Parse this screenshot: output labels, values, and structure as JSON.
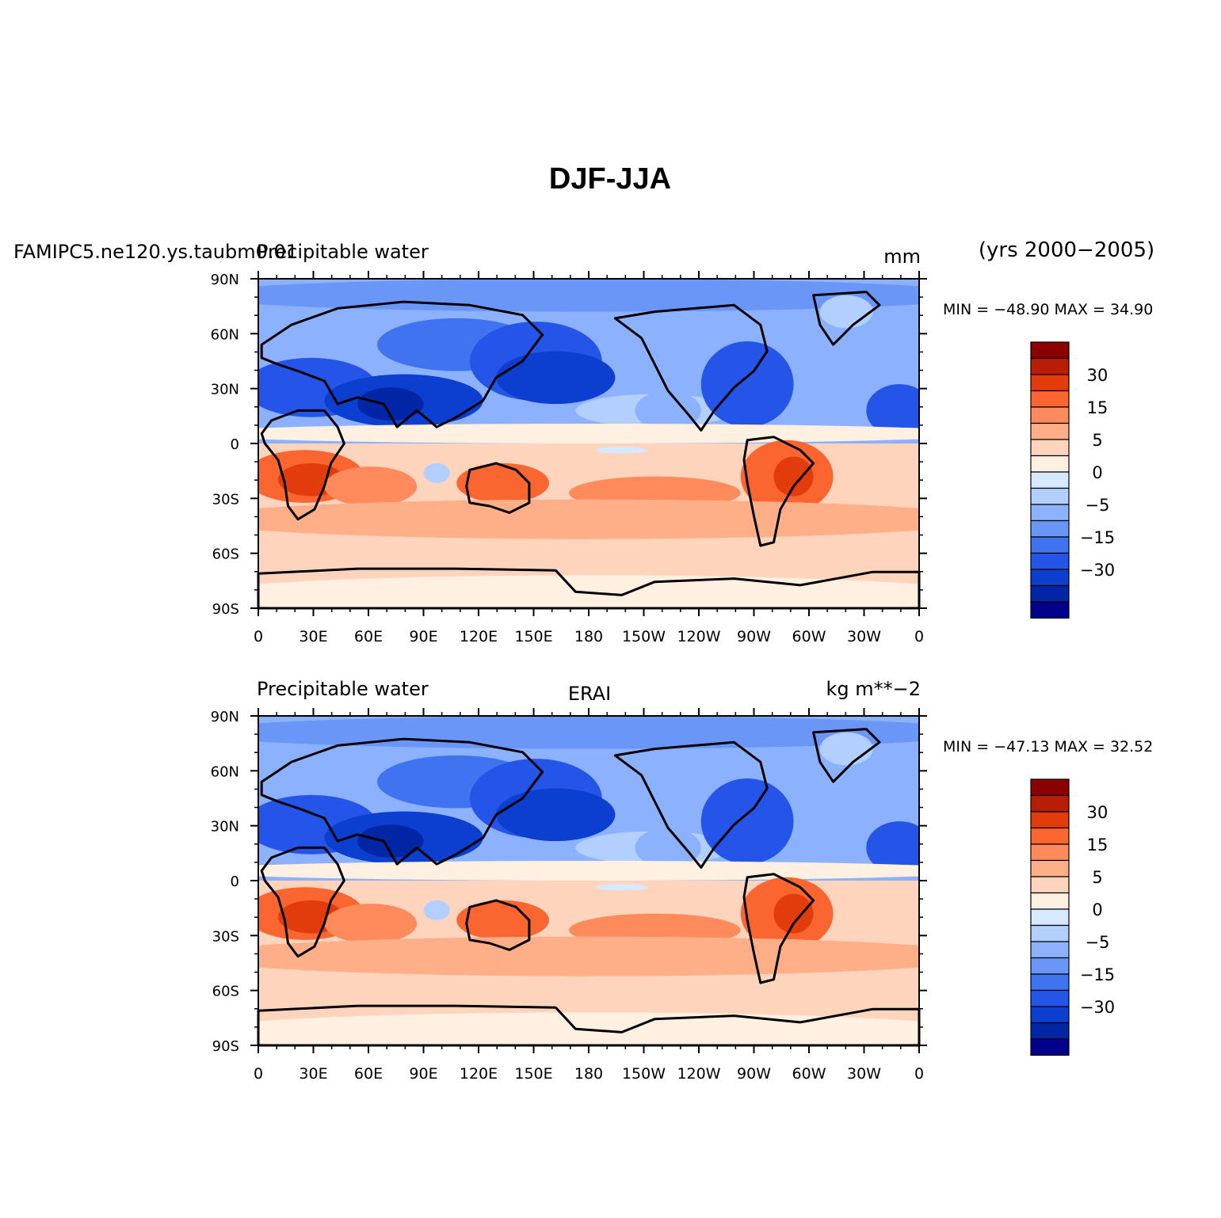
{
  "figure": {
    "title": "DJF-JJA",
    "period": "(yrs 2000−2005)"
  },
  "colors": {
    "levels": [
      "#00008b",
      "#0026a6",
      "#0c3ed0",
      "#2555e8",
      "#3f73f0",
      "#6a96f8",
      "#8cb1ff",
      "#b3cfff",
      "#d7e9ff",
      "#fff0e2",
      "#ffd4bd",
      "#ffaf88",
      "#ff8a5c",
      "#fa6530",
      "#e33c0c",
      "#b91e04",
      "#8b0000"
    ],
    "coast": "#000000"
  },
  "panels": [
    {
      "left": "FAMIPC5.ne120.ys.taubm0.01",
      "center_left": "Precipitable water",
      "center": "",
      "right": "mm",
      "min_max": "MIN = −48.90 MAX =  34.90",
      "stats": {
        "min": -48.9,
        "max": 34.9
      }
    },
    {
      "left": "",
      "center_left": "Precipitable water",
      "center": "ERAI",
      "right": "kg m**−2",
      "min_max": "MIN = −47.13 MAX =  32.52",
      "stats": {
        "min": -47.13,
        "max": 32.52
      }
    }
  ],
  "axes": {
    "lat_ticks": [
      "90N",
      "60N",
      "30N",
      "0",
      "30S",
      "60S",
      "90S"
    ],
    "lon_ticks": [
      "0",
      "30E",
      "60E",
      "90E",
      "120E",
      "150E",
      "180",
      "150W",
      "120W",
      "90W",
      "60W",
      "30W",
      "0"
    ]
  },
  "colorbar": {
    "labels": [
      "30",
      "15",
      "5",
      "0",
      "−5",
      "−15",
      "−30"
    ]
  }
}
